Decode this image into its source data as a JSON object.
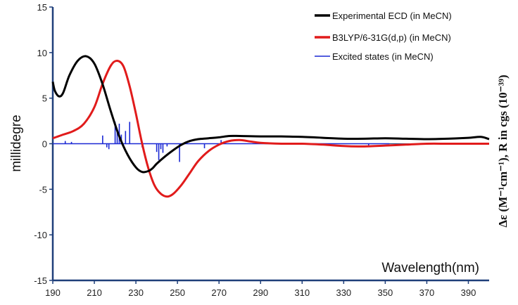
{
  "chart_data": {
    "type": "line",
    "title": "",
    "xlabel": "Wavelength(nm)",
    "ylabel": "millidegre",
    "ylabel_right": "Δε (M⁻¹cm⁻¹), R in cgs (10⁻³⁹)",
    "xlim": [
      190,
      400
    ],
    "ylim": [
      -15,
      15
    ],
    "x_ticks": [
      "190",
      "210",
      "230",
      "250",
      "270",
      "290",
      "310",
      "330",
      "350",
      "370",
      "390"
    ],
    "y_ticks": [
      "15",
      "10",
      "5",
      "0",
      "-5",
      "-10",
      "-15"
    ],
    "legend_position": "top-right",
    "colors": {
      "experimental": "#000000",
      "calculated": "#e11b1b",
      "excited": "#1a28d4"
    },
    "series": [
      {
        "name": "Experimental ECD (in MeCN)",
        "x": [
          190,
          191,
          193,
          195,
          198,
          202,
          206,
          210,
          214,
          218,
          222,
          226,
          230,
          233,
          236,
          238,
          240,
          244,
          248,
          252,
          256,
          260,
          265,
          270,
          275,
          280,
          290,
          300,
          310,
          320,
          330,
          340,
          350,
          360,
          370,
          380,
          390,
          396,
          400
        ],
        "y": [
          6.8,
          5.8,
          5.2,
          5.6,
          7.5,
          9.1,
          9.6,
          8.8,
          6.5,
          3.5,
          0.8,
          -1.2,
          -2.6,
          -3.1,
          -3.0,
          -2.7,
          -2.2,
          -1.4,
          -0.7,
          -0.1,
          0.3,
          0.5,
          0.6,
          0.7,
          0.85,
          0.85,
          0.8,
          0.8,
          0.75,
          0.65,
          0.55,
          0.55,
          0.6,
          0.55,
          0.5,
          0.55,
          0.65,
          0.75,
          0.5
        ]
      },
      {
        "name": "B3LYP/6-31G(d,p) (in MeCN)",
        "x": [
          190,
          195,
          200,
          205,
          210,
          214,
          218,
          221,
          224,
          227,
          230,
          233,
          236,
          239,
          242,
          245,
          248,
          252,
          256,
          260,
          265,
          270,
          275,
          280,
          285,
          290,
          300,
          310,
          320,
          330,
          340,
          350,
          360,
          370,
          380,
          390,
          400
        ],
        "y": [
          0.6,
          1.0,
          1.4,
          2.2,
          4.0,
          6.6,
          8.6,
          9.1,
          8.5,
          6.3,
          3.3,
          0.0,
          -2.7,
          -4.6,
          -5.5,
          -5.8,
          -5.5,
          -4.5,
          -3.2,
          -1.9,
          -0.8,
          -0.1,
          0.3,
          0.4,
          0.25,
          0.1,
          0.0,
          0.0,
          -0.1,
          -0.25,
          -0.3,
          -0.2,
          -0.1,
          0.0,
          0.0,
          0.0,
          0.0
        ]
      },
      {
        "name": "Excited states (in MeCN)",
        "type": "stick",
        "x": [
          196,
          199,
          214,
          216,
          217,
          220,
          221,
          222,
          223,
          225,
          227,
          233,
          240,
          241,
          242,
          243,
          245,
          251,
          263,
          271,
          342
        ],
        "y": [
          0.3,
          0.2,
          0.9,
          -0.4,
          -0.6,
          2.4,
          1.5,
          2.2,
          1.0,
          1.4,
          2.4,
          -0.4,
          -0.9,
          -1.8,
          -0.6,
          -1.0,
          -0.3,
          -2.0,
          -0.5,
          0.4,
          -0.2
        ]
      }
    ]
  }
}
